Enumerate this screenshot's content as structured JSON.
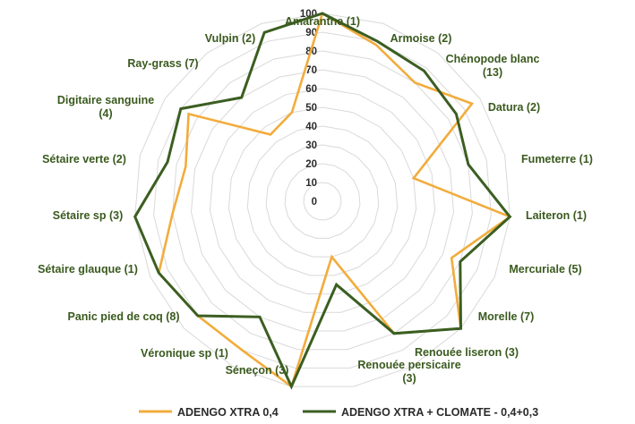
{
  "chart_data": {
    "type": "radar",
    "title": "",
    "categories": [
      "Amaranthe (1)",
      "Armoise (2)",
      "Chénopode blanc (13)",
      "Datura (2)",
      "Fumeterre (1)",
      "Laiteron (1)",
      "Mercuriale (5)",
      "Morelle (7)",
      "Renouée liseron (3)",
      "Renouée persicaire (3)",
      "Séneçon (3)",
      "Véronique sp (1)",
      "Panic pied de coq (8)",
      "Sétaire glauque (1)",
      "Sétaire sp (3)",
      "Sétaire verte (2)",
      "Digitaire sanguine (4)",
      "Ray-grass (7)",
      "Vulpin (2)"
    ],
    "rlim": [
      0,
      100
    ],
    "ticks": [
      0,
      10,
      20,
      30,
      40,
      50,
      60,
      70,
      80,
      90,
      100
    ],
    "grid": true,
    "legend_position": "bottom",
    "series": [
      {
        "name": "ADENGO XTRA 0,4",
        "color": "#F2AC3C",
        "values": [
          100,
          88,
          80,
          95,
          50,
          100,
          75,
          100,
          80,
          30,
          100,
          90,
          90,
          95,
          80,
          75,
          85,
          45,
          50
        ]
      },
      {
        "name": "ADENGO XTRA + CLOMATE - 0,4+0,3",
        "color": "#3B5E21",
        "values": [
          100,
          90,
          88,
          85,
          80,
          100,
          80,
          100,
          80,
          45,
          100,
          70,
          90,
          95,
          100,
          85,
          90,
          70,
          95
        ]
      }
    ]
  }
}
